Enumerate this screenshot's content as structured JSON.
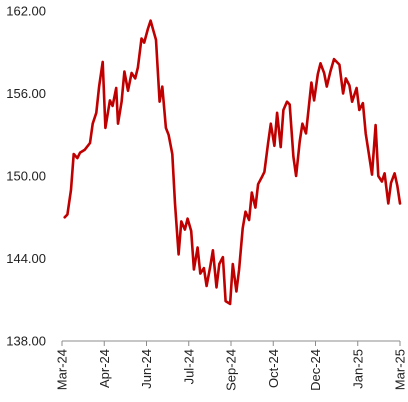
{
  "chart_data": {
    "type": "line",
    "title": "",
    "xlabel": "",
    "ylabel": "",
    "ylim": [
      138,
      162
    ],
    "y_ticks": [
      "138.00",
      "144.00",
      "150.00",
      "156.00",
      "162.00"
    ],
    "x_ticks": [
      "Mar-24",
      "Apr-24",
      "Jun-24",
      "Jul-24",
      "Sep-24",
      "Oct-24",
      "Dec-24",
      "Jan-25",
      "Mar-25"
    ],
    "x_range": [
      "2024-03-01",
      "2025-03-10"
    ],
    "grid": false,
    "legend": "none",
    "colors": {
      "line": "#c00000",
      "axis": "#8c8c8c",
      "text": "#222222"
    },
    "series": [
      {
        "x": [
          "2024-03-04",
          "2024-03-07",
          "2024-03-11",
          "2024-03-14",
          "2024-03-18",
          "2024-03-21",
          "2024-03-26",
          "2024-04-01",
          "2024-04-04",
          "2024-04-08",
          "2024-04-11",
          "2024-04-15",
          "2024-04-18",
          "2024-04-23",
          "2024-04-26",
          "2024-04-30",
          "2024-05-02",
          "2024-05-06",
          "2024-05-09",
          "2024-05-13",
          "2024-05-17",
          "2024-05-21",
          "2024-05-24",
          "2024-05-28",
          "2024-05-31",
          "2024-06-04",
          "2024-06-07",
          "2024-06-10",
          "2024-06-13",
          "2024-06-17",
          "2024-06-20",
          "2024-06-24",
          "2024-06-27",
          "2024-07-01",
          "2024-07-04",
          "2024-07-08",
          "2024-07-11",
          "2024-07-15",
          "2024-07-18",
          "2024-07-22",
          "2024-07-25",
          "2024-07-29",
          "2024-08-01",
          "2024-08-05",
          "2024-08-08",
          "2024-08-12",
          "2024-08-15",
          "2024-08-19",
          "2024-08-22",
          "2024-08-26",
          "2024-08-29",
          "2024-09-03",
          "2024-09-06",
          "2024-09-10",
          "2024-09-13",
          "2024-09-17",
          "2024-09-20",
          "2024-09-24",
          "2024-09-27",
          "2024-10-01",
          "2024-10-04",
          "2024-10-08",
          "2024-10-11",
          "2024-10-15",
          "2024-10-18",
          "2024-10-22",
          "2024-10-25",
          "2024-10-29",
          "2024-11-01",
          "2024-11-05",
          "2024-11-08",
          "2024-11-12",
          "2024-11-15",
          "2024-11-19",
          "2024-11-22",
          "2024-11-26",
          "2024-12-02",
          "2024-12-05",
          "2024-12-09",
          "2024-12-12",
          "2024-12-16",
          "2024-12-19",
          "2024-12-23",
          "2024-12-27",
          "2025-01-02",
          "2025-01-06",
          "2025-01-09",
          "2025-01-13",
          "2025-01-16",
          "2025-01-21",
          "2025-01-24",
          "2025-01-28",
          "2025-01-31",
          "2025-02-04",
          "2025-02-07",
          "2025-02-11",
          "2025-02-14",
          "2025-02-18",
          "2025-02-21",
          "2025-02-25",
          "2025-02-28",
          "2025-03-04",
          "2025-03-07",
          "2025-03-10"
        ],
        "values": [
          147.0,
          147.2,
          149.0,
          151.6,
          151.3,
          151.7,
          151.9,
          152.4,
          153.8,
          154.6,
          156.5,
          158.3,
          153.5,
          155.5,
          155.1,
          156.4,
          153.8,
          155.4,
          157.6,
          156.2,
          157.5,
          157.1,
          157.9,
          160.0,
          159.7,
          160.7,
          161.3,
          160.6,
          159.9,
          155.4,
          156.5,
          153.5,
          153.0,
          151.6,
          148.0,
          144.3,
          146.7,
          146.1,
          146.9,
          146.0,
          143.2,
          144.8,
          142.9,
          143.3,
          142.0,
          143.4,
          144.6,
          141.9,
          143.6,
          144.1,
          140.9,
          140.7,
          143.6,
          141.6,
          143.2,
          146.2,
          147.4,
          146.8,
          148.8,
          147.7,
          149.4,
          149.9,
          150.3,
          152.4,
          153.8,
          152.2,
          154.6,
          152.1,
          154.8,
          155.4,
          155.2,
          151.4,
          150.0,
          152.5,
          153.8,
          153.1,
          156.8,
          155.5,
          157.4,
          158.2,
          157.5,
          156.5,
          157.6,
          158.5,
          158.1,
          156.0,
          157.1,
          156.6,
          155.4,
          156.4,
          154.8,
          155.3,
          153.1,
          151.4,
          150.1,
          153.7,
          150.0,
          149.6,
          150.2,
          148.0,
          149.5,
          150.2,
          149.3,
          148.0
        ]
      }
    ]
  }
}
